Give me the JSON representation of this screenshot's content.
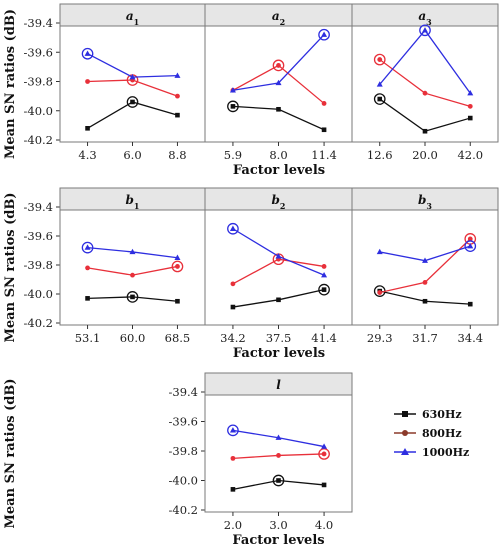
{
  "chart_data": {
    "type": "line",
    "series_names": [
      "630Hz",
      "800Hz",
      "1000Hz"
    ],
    "colors": {
      "630Hz": "#111111",
      "800Hz": "#e8303a",
      "1000Hz": "#2e2ee0"
    },
    "legend_markers": {
      "630Hz": "square",
      "800Hz": "circle",
      "1000Hz": "triangle"
    },
    "legend_colors": {
      "630Hz": "#111111",
      "800Hz": "#8b3a2a",
      "1000Hz": "#2e2ee0"
    },
    "ylabel": "Mean SN ratios (dB)",
    "xlabel": "Factor levels",
    "ylim": [
      -40.2,
      -39.35
    ],
    "yticks": [
      "-39.4",
      "-39.6",
      "-39.8",
      "-40.0",
      "-40.2"
    ],
    "rows": [
      {
        "panels": [
          {
            "label": "a",
            "subscript": "1",
            "categories": [
              "4.3",
              "6.0",
              "8.8"
            ],
            "series": [
              {
                "name": "630Hz",
                "values": [
                  -40.12,
                  -39.94,
                  -40.03
                ]
              },
              {
                "name": "800Hz",
                "values": [
                  -39.8,
                  -39.79,
                  -39.9
                ]
              },
              {
                "name": "1000Hz",
                "values": [
                  -39.61,
                  -39.77,
                  -39.76
                ]
              }
            ],
            "optimum": {
              "630Hz": 1,
              "800Hz": 1,
              "1000Hz": 0
            }
          },
          {
            "label": "a",
            "subscript": "2",
            "categories": [
              "5.9",
              "8.0",
              "11.4"
            ],
            "series": [
              {
                "name": "630Hz",
                "values": [
                  -39.97,
                  -39.99,
                  -40.13
                ]
              },
              {
                "name": "800Hz",
                "values": [
                  -39.86,
                  -39.69,
                  -39.95
                ]
              },
              {
                "name": "1000Hz",
                "values": [
                  -39.86,
                  -39.81,
                  -39.48
                ]
              }
            ],
            "optimum": {
              "630Hz": 0,
              "800Hz": 1,
              "1000Hz": 2
            }
          },
          {
            "label": "a",
            "subscript": "3",
            "categories": [
              "12.6",
              "20.0",
              "42.0"
            ],
            "series": [
              {
                "name": "630Hz",
                "values": [
                  -39.92,
                  -40.14,
                  -40.05
                ]
              },
              {
                "name": "800Hz",
                "values": [
                  -39.65,
                  -39.88,
                  -39.97
                ]
              },
              {
                "name": "1000Hz",
                "values": [
                  -39.82,
                  -39.45,
                  -39.88
                ]
              }
            ],
            "optimum": {
              "630Hz": 0,
              "800Hz": 0,
              "1000Hz": 1
            }
          }
        ]
      },
      {
        "panels": [
          {
            "label": "b",
            "subscript": "1",
            "categories": [
              "53.1",
              "60.0",
              "68.5"
            ],
            "series": [
              {
                "name": "630Hz",
                "values": [
                  -40.03,
                  -40.02,
                  -40.05
                ]
              },
              {
                "name": "800Hz",
                "values": [
                  -39.82,
                  -39.87,
                  -39.81
                ]
              },
              {
                "name": "1000Hz",
                "values": [
                  -39.68,
                  -39.71,
                  -39.75
                ]
              }
            ],
            "optimum": {
              "630Hz": 1,
              "800Hz": 2,
              "1000Hz": 0
            }
          },
          {
            "label": "b",
            "subscript": "2",
            "categories": [
              "34.2",
              "37.5",
              "41.4"
            ],
            "series": [
              {
                "name": "630Hz",
                "values": [
                  -40.09,
                  -40.04,
                  -39.97
                ]
              },
              {
                "name": "800Hz",
                "values": [
                  -39.93,
                  -39.76,
                  -39.81
                ]
              },
              {
                "name": "1000Hz",
                "values": [
                  -39.55,
                  -39.74,
                  -39.87
                ]
              }
            ],
            "optimum": {
              "630Hz": 2,
              "800Hz": 1,
              "1000Hz": 0
            }
          },
          {
            "label": "b",
            "subscript": "3",
            "categories": [
              "29.3",
              "31.7",
              "34.4"
            ],
            "series": [
              {
                "name": "630Hz",
                "values": [
                  -39.98,
                  -40.05,
                  -40.07
                ]
              },
              {
                "name": "800Hz",
                "values": [
                  -39.99,
                  -39.92,
                  -39.62
                ]
              },
              {
                "name": "1000Hz",
                "values": [
                  -39.71,
                  -39.77,
                  -39.67
                ]
              }
            ],
            "optimum": {
              "630Hz": 0,
              "800Hz": 2,
              "1000Hz": 2
            }
          }
        ]
      },
      {
        "panels": [
          {
            "label": "l",
            "subscript": "",
            "categories": [
              "2.0",
              "3.0",
              "4.0"
            ],
            "series": [
              {
                "name": "630Hz",
                "values": [
                  -40.06,
                  -40.0,
                  -40.03
                ]
              },
              {
                "name": "800Hz",
                "values": [
                  -39.85,
                  -39.83,
                  -39.82
                ]
              },
              {
                "name": "1000Hz",
                "values": [
                  -39.66,
                  -39.71,
                  -39.77
                ]
              }
            ],
            "optimum": {
              "630Hz": 1,
              "800Hz": 2,
              "1000Hz": 0
            }
          }
        ]
      }
    ]
  }
}
